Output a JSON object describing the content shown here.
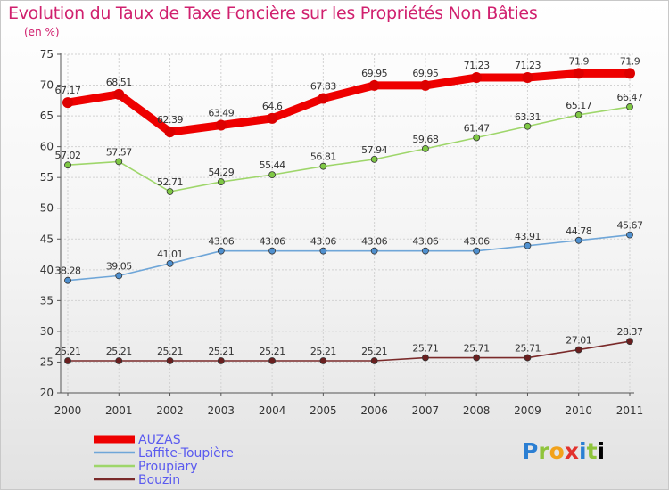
{
  "title": "Evolution du Taux de Taxe Foncière sur les Propriétés Non Bâties",
  "unit_label": "(en %)",
  "logo_text": "Proxiti",
  "colors": {
    "title": "#d0206e",
    "axis": "#555555",
    "grid": "#d2d2d2",
    "legend_text": "#5a5aef"
  },
  "chart_data": {
    "type": "line",
    "title": "Evolution du Taux de Taxe Foncière sur les Propriétés Non Bâties",
    "ylabel": "(en %)",
    "xlabel": "",
    "ylim": [
      20,
      75
    ],
    "yticks": [
      20,
      25,
      30,
      35,
      40,
      45,
      50,
      55,
      60,
      65,
      70,
      75
    ],
    "x": [
      "2000",
      "2001",
      "2002",
      "2003",
      "2004",
      "2005",
      "2006",
      "2007",
      "2008",
      "2009",
      "2010",
      "2011"
    ],
    "grid": true,
    "legend_position": "bottom-left",
    "series": [
      {
        "name": "AUZAS",
        "color": "#ee0000",
        "marker": "#dd0000",
        "values": [
          67.17,
          68.51,
          62.39,
          63.49,
          64.6,
          67.83,
          69.95,
          69.95,
          71.23,
          71.23,
          71.9,
          71.9
        ],
        "labels": [
          "67.17",
          "68.51",
          "62.39",
          "63.49",
          "64.6",
          "67.83",
          "69.95",
          "69.95",
          "71.23",
          "71.23",
          "71.9",
          "71.9"
        ]
      },
      {
        "name": "Laffite-Toupière",
        "color": "#6fa6d8",
        "marker": "#4f90cf",
        "values": [
          38.28,
          39.05,
          41.01,
          43.06,
          43.06,
          43.06,
          43.06,
          43.06,
          43.06,
          43.91,
          44.78,
          45.67
        ],
        "labels": [
          "38.28",
          "39.05",
          "41.01",
          "43.06",
          "43.06",
          "43.06",
          "43.06",
          "43.06",
          "43.06",
          "43.91",
          "44.78",
          "45.67"
        ]
      },
      {
        "name": "Proupiary",
        "color": "#9ed66a",
        "marker": "#7fc845",
        "values": [
          57.02,
          57.57,
          52.71,
          54.29,
          55.44,
          56.81,
          57.94,
          59.68,
          61.47,
          63.31,
          65.17,
          66.47
        ],
        "labels": [
          "57.02",
          "57.57",
          "52.71",
          "54.29",
          "55.44",
          "56.81",
          "57.94",
          "59.68",
          "61.47",
          "63.31",
          "65.17",
          "66.47"
        ]
      },
      {
        "name": "Bouzin",
        "color": "#7a2a2a",
        "marker": "#6a1f1f",
        "values": [
          25.21,
          25.21,
          25.21,
          25.21,
          25.21,
          25.21,
          25.21,
          25.71,
          25.71,
          25.71,
          27.01,
          28.37
        ],
        "labels": [
          "25.21",
          "25.21",
          "25.21",
          "25.21",
          "25.21",
          "25.21",
          "25.21",
          "25.71",
          "25.71",
          "25.71",
          "27.01",
          "28.37"
        ]
      }
    ]
  }
}
